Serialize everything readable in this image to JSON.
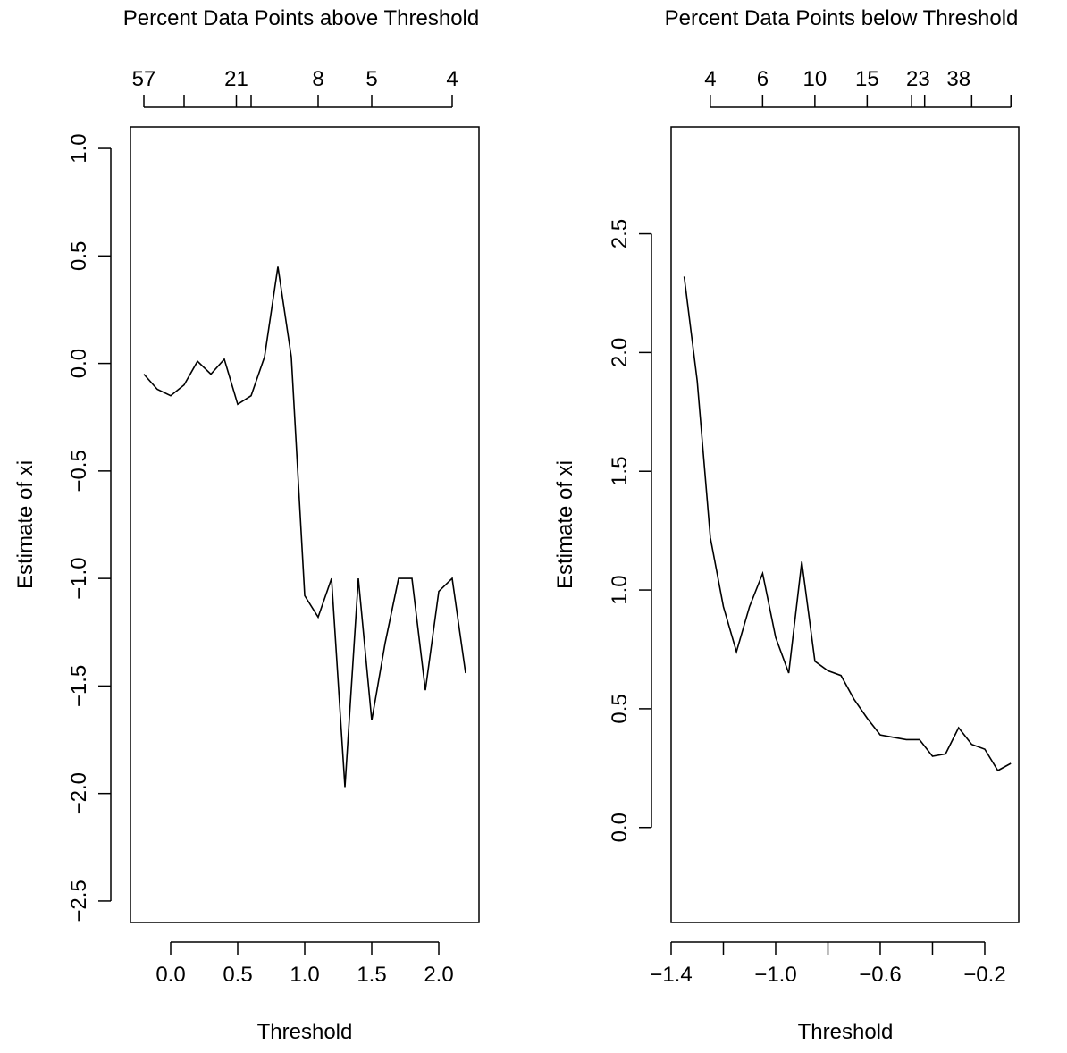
{
  "chart_data": [
    {
      "type": "line",
      "top_title": "Percent Data Points above Threshold",
      "xlabel": "Threshold",
      "ylabel": "Estimate of xi",
      "xlim": [
        -0.3,
        2.3
      ],
      "ylim": [
        -2.6,
        1.1
      ],
      "x_ticks": [
        0.0,
        0.5,
        1.0,
        1.5,
        2.0
      ],
      "x_tick_labels": [
        "0.0",
        "0.5",
        "1.0",
        "1.5",
        "2.0"
      ],
      "y_ticks": [
        -2.5,
        -2.0,
        -1.5,
        -1.0,
        -0.5,
        0.0,
        0.5,
        1.0
      ],
      "y_tick_labels": [
        "−2.5",
        "−2.0",
        "−1.5",
        "−1.0",
        "−0.5",
        "0.0",
        "0.5",
        "1.0"
      ],
      "top_ticks_x": [
        -0.2,
        0.1,
        0.49,
        0.6,
        1.1,
        1.5,
        2.1
      ],
      "top_tick_labels": [
        {
          "x": -0.2,
          "label": "57"
        },
        {
          "x": 0.49,
          "label": "21"
        },
        {
          "x": 1.1,
          "label": "8"
        },
        {
          "x": 1.5,
          "label": "5"
        },
        {
          "x": 2.1,
          "label": "4"
        }
      ],
      "series": [
        {
          "x": [
            -0.2,
            -0.1,
            0.0,
            0.1,
            0.2,
            0.3,
            0.4,
            0.5,
            0.6,
            0.7,
            0.8,
            0.9,
            1.0,
            1.1,
            1.2,
            1.3,
            1.4,
            1.5,
            1.6,
            1.7,
            1.8,
            1.9,
            2.0,
            2.1,
            2.2
          ],
          "y": [
            -0.05,
            -0.12,
            -0.15,
            -0.1,
            0.01,
            -0.05,
            0.02,
            -0.19,
            -0.15,
            0.03,
            0.45,
            0.03,
            -1.08,
            -1.18,
            -1.0,
            -1.97,
            -1.0,
            -1.66,
            -1.3,
            -1.0,
            -1.0,
            -1.52,
            -1.06,
            -1.0,
            -1.44
          ]
        }
      ]
    },
    {
      "type": "line",
      "top_title": "Percent Data Points below Threshold",
      "xlabel": "Threshold",
      "ylabel": "Estimate of xi",
      "xlim": [
        -1.4,
        -0.07
      ],
      "ylim": [
        -0.4,
        2.95
      ],
      "x_ticks": [
        -1.4,
        -1.2,
        -1.0,
        -0.8,
        -0.6,
        -0.4,
        -0.2
      ],
      "x_tick_labels": [
        {
          "x": -1.4,
          "label": "−1.4"
        },
        {
          "x": -1.0,
          "label": "−1.0"
        },
        {
          "x": -0.6,
          "label": "−0.6"
        },
        {
          "x": -0.2,
          "label": "−0.2"
        }
      ],
      "y_ticks": [
        0.0,
        0.5,
        1.0,
        1.5,
        2.0,
        2.5
      ],
      "y_tick_labels": [
        "0.0",
        "0.5",
        "1.0",
        "1.5",
        "2.0",
        "2.5"
      ],
      "top_ticks_x": [
        -1.25,
        -1.05,
        -0.85,
        -0.65,
        -0.48,
        -0.43,
        -0.25,
        -0.1
      ],
      "top_tick_labels": [
        {
          "x": -1.25,
          "label": "4"
        },
        {
          "x": -1.05,
          "label": "6"
        },
        {
          "x": -0.85,
          "label": "10"
        },
        {
          "x": -0.65,
          "label": "15"
        },
        {
          "x": -0.455,
          "label": "23"
        },
        {
          "x": -0.3,
          "label": "38"
        }
      ],
      "series": [
        {
          "x": [
            -1.35,
            -1.3,
            -1.25,
            -1.2,
            -1.15,
            -1.1,
            -1.05,
            -1.0,
            -0.95,
            -0.9,
            -0.85,
            -0.8,
            -0.75,
            -0.7,
            -0.65,
            -0.6,
            -0.55,
            -0.5,
            -0.45,
            -0.4,
            -0.35,
            -0.3,
            -0.25,
            -0.2,
            -0.15,
            -0.1
          ],
          "y": [
            2.32,
            1.88,
            1.22,
            0.93,
            0.74,
            0.93,
            1.07,
            0.8,
            0.65,
            1.12,
            0.7,
            0.66,
            0.64,
            0.54,
            0.46,
            0.39,
            0.38,
            0.37,
            0.37,
            0.3,
            0.31,
            0.42,
            0.35,
            0.33,
            0.24,
            0.27
          ]
        }
      ]
    }
  ]
}
